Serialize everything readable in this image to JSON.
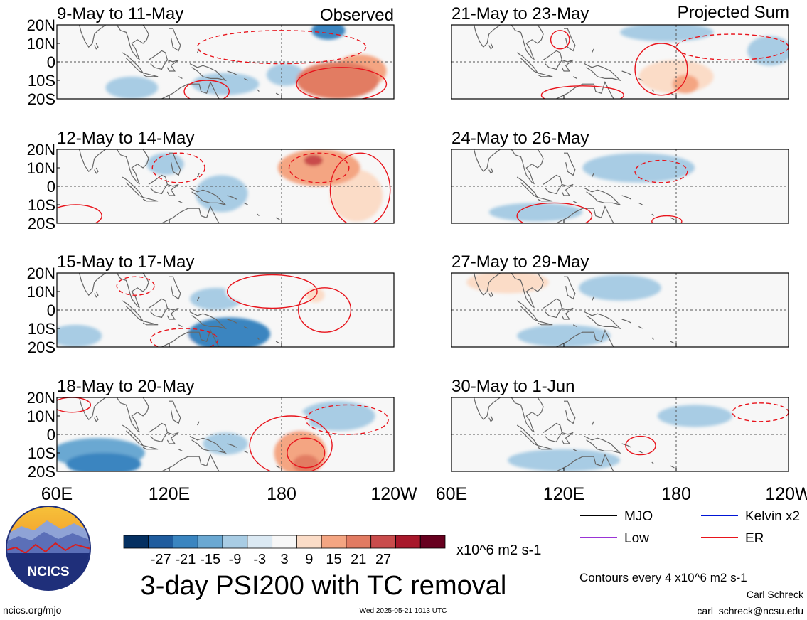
{
  "figure": {
    "title": "3-day PSI200 with TC removal",
    "left_column_label": "Observed",
    "right_column_label": "Projected Sum",
    "website": "ncics.org/mjo",
    "timestamp": "Wed 2025-05-21 1013 UTC",
    "author": "Carl Schreck",
    "email": "carl_schreck@ncsu.edu",
    "logo_text": "NCICS",
    "contour_note": "Contours every 4 x10^6 m2 s-1"
  },
  "colors": {
    "neg_strong": "#053061",
    "neg_mid": "#2f74b4",
    "neg_light": "#9dc8e2",
    "neutral": "#f7f7f7",
    "pos_light": "#f7c7ad",
    "pos_mid": "#e07b62",
    "pos_strong": "#8e0b24",
    "contour_er": "#e8141c",
    "equator_line": "#555555",
    "coast": "#666666"
  },
  "chart_data": {
    "type": "heatmap",
    "variable": "PSI200",
    "units": "x10^6 m2 s-1",
    "x_ticks": [
      "60E",
      "120E",
      "180",
      "120W",
      "60E",
      "120E",
      "180",
      "120W"
    ],
    "y_ticks": [
      "20N",
      "10N",
      "0",
      "10S",
      "20S"
    ],
    "xlim_deg_east": [
      60,
      240
    ],
    "ylim_deg": [
      -20,
      20
    ],
    "colorbar": {
      "labels": [
        "-27",
        "-21",
        "-15",
        "-9",
        "-3",
        "3",
        "9",
        "15",
        "21",
        "27"
      ],
      "bins": [
        "#053061",
        "#1f5c9e",
        "#3a85c0",
        "#6aa8d2",
        "#a8cce4",
        "#dbe9f3",
        "#f7f7f7",
        "#fbdcc7",
        "#f4a582",
        "#e27b62",
        "#c94c4c",
        "#a8182b",
        "#67001f"
      ],
      "units": "x10^6 m2 s-1"
    },
    "legend": [
      {
        "name": "MJO",
        "color": "#000000"
      },
      {
        "name": "Kelvin x2",
        "color": "#0015d6"
      },
      {
        "name": "Low",
        "color": "#9a34d6"
      },
      {
        "name": "ER",
        "color": "#e8141c"
      }
    ],
    "panels": [
      {
        "label": "9-May to 11-May",
        "column": "observed",
        "blobs": [
          {
            "lon": 210,
            "lat": -10,
            "rx": 22,
            "ry": 10,
            "v": 22
          },
          {
            "lon": 222,
            "lat": -5,
            "rx": 14,
            "ry": 9,
            "v": 18
          },
          {
            "lon": 205,
            "lat": 17,
            "rx": 9,
            "ry": 5,
            "v": -16
          },
          {
            "lon": 165,
            "lat": 16,
            "rx": 18,
            "ry": 6,
            "v": 6
          },
          {
            "lon": 75,
            "lat": 14,
            "rx": 14,
            "ry": 6,
            "v": 6
          },
          {
            "lon": 118,
            "lat": 14,
            "rx": 12,
            "ry": 6,
            "v": 7
          },
          {
            "lon": 100,
            "lat": -14,
            "rx": 14,
            "ry": 6,
            "v": -5
          },
          {
            "lon": 150,
            "lat": -12,
            "rx": 18,
            "ry": 6,
            "v": -5
          },
          {
            "lon": 182,
            "lat": -7,
            "rx": 10,
            "ry": 6,
            "v": -5
          }
        ],
        "contours": [
          {
            "lon": 212,
            "lat": -12,
            "rx": 24,
            "ry": 9,
            "dashed": false
          },
          {
            "lon": 180,
            "lat": 8,
            "rx": 45,
            "ry": 9,
            "dashed": true
          },
          {
            "lon": 140,
            "lat": -16,
            "rx": 12,
            "ry": 6,
            "dashed": false
          }
        ]
      },
      {
        "label": "12-May to 14-May",
        "column": "observed",
        "blobs": [
          {
            "lon": 200,
            "lat": 10,
            "rx": 22,
            "ry": 10,
            "v": 18
          },
          {
            "lon": 197,
            "lat": 14,
            "rx": 5,
            "ry": 3,
            "v": 30
          },
          {
            "lon": 220,
            "lat": -5,
            "rx": 14,
            "ry": 14,
            "v": 14
          },
          {
            "lon": 75,
            "lat": -10,
            "rx": 20,
            "ry": 8,
            "v": 5
          },
          {
            "lon": 125,
            "lat": 10,
            "rx": 15,
            "ry": 8,
            "v": 6
          },
          {
            "lon": 118,
            "lat": 12,
            "rx": 10,
            "ry": 6,
            "v": -6
          },
          {
            "lon": 148,
            "lat": -4,
            "rx": 14,
            "ry": 10,
            "v": -7
          },
          {
            "lon": 170,
            "lat": -10,
            "rx": 15,
            "ry": 6,
            "v": 5
          }
        ],
        "contours": [
          {
            "lon": 222,
            "lat": -2,
            "rx": 16,
            "ry": 20,
            "dashed": false
          },
          {
            "lon": 200,
            "lat": 10,
            "rx": 16,
            "ry": 8,
            "dashed": true
          },
          {
            "lon": 70,
            "lat": -16,
            "rx": 14,
            "ry": 6,
            "dashed": false
          },
          {
            "lon": 125,
            "lat": 10,
            "rx": 14,
            "ry": 8,
            "dashed": true
          }
        ]
      },
      {
        "label": "15-May to 17-May",
        "column": "observed",
        "blobs": [
          {
            "lon": 175,
            "lat": 10,
            "rx": 25,
            "ry": 8,
            "v": 7
          },
          {
            "lon": 198,
            "lat": 8,
            "rx": 5,
            "ry": 4,
            "v": 12
          },
          {
            "lon": 195,
            "lat": -3,
            "rx": 8,
            "ry": 5,
            "v": 7
          },
          {
            "lon": 152,
            "lat": -13,
            "rx": 22,
            "ry": 9,
            "v": -15
          },
          {
            "lon": 70,
            "lat": -14,
            "rx": 14,
            "ry": 6,
            "v": -7
          },
          {
            "lon": 90,
            "lat": 12,
            "rx": 22,
            "ry": 6,
            "v": 6
          },
          {
            "lon": 123,
            "lat": -16,
            "rx": 12,
            "ry": 5,
            "v": 8
          },
          {
            "lon": 145,
            "lat": 6,
            "rx": 14,
            "ry": 6,
            "v": -4
          }
        ],
        "contours": [
          {
            "lon": 175,
            "lat": 10,
            "rx": 24,
            "ry": 9,
            "dashed": false
          },
          {
            "lon": 203,
            "lat": 0,
            "rx": 14,
            "ry": 12,
            "dashed": false
          },
          {
            "lon": 102,
            "lat": 13,
            "rx": 10,
            "ry": 5,
            "dashed": true
          },
          {
            "lon": 128,
            "lat": -16,
            "rx": 18,
            "ry": 6,
            "dashed": true
          }
        ]
      },
      {
        "label": "18-May to 20-May",
        "column": "observed",
        "blobs": [
          {
            "lon": 190,
            "lat": -10,
            "rx": 14,
            "ry": 12,
            "v": 20
          },
          {
            "lon": 193,
            "lat": -16,
            "rx": 7,
            "ry": 5,
            "v": 26
          },
          {
            "lon": 175,
            "lat": 6,
            "rx": 20,
            "ry": 10,
            "v": 9
          },
          {
            "lon": 85,
            "lat": -16,
            "rx": 20,
            "ry": 6,
            "v": -20
          },
          {
            "lon": 82,
            "lat": -10,
            "rx": 25,
            "ry": 8,
            "v": -9
          },
          {
            "lon": 70,
            "lat": 16,
            "rx": 10,
            "ry": 4,
            "v": 8
          },
          {
            "lon": 150,
            "lat": -5,
            "rx": 12,
            "ry": 6,
            "v": -7
          },
          {
            "lon": 120,
            "lat": 8,
            "rx": 14,
            "ry": 6,
            "v": 5
          },
          {
            "lon": 210,
            "lat": 10,
            "rx": 20,
            "ry": 8,
            "v": -5
          }
        ],
        "contours": [
          {
            "lon": 185,
            "lat": -6,
            "rx": 22,
            "ry": 16,
            "dashed": false
          },
          {
            "lon": 193,
            "lat": -10,
            "rx": 10,
            "ry": 8,
            "dashed": false
          },
          {
            "lon": 68,
            "lat": 16,
            "rx": 10,
            "ry": 4,
            "dashed": false
          },
          {
            "lon": 215,
            "lat": 8,
            "rx": 22,
            "ry": 8,
            "dashed": true
          }
        ]
      },
      {
        "label": "21-May to 23-May",
        "column": "projected",
        "blobs": [
          {
            "lon": 180,
            "lat": -8,
            "rx": 20,
            "ry": 9,
            "v": 10
          },
          {
            "lon": 185,
            "lat": -12,
            "rx": 7,
            "ry": 5,
            "v": 18
          },
          {
            "lon": 175,
            "lat": 16,
            "rx": 25,
            "ry": 5,
            "v": -6
          },
          {
            "lon": 110,
            "lat": 15,
            "rx": 12,
            "ry": 5,
            "v": 5
          },
          {
            "lon": 85,
            "lat": 14,
            "rx": 22,
            "ry": 5,
            "v": 5
          },
          {
            "lon": 125,
            "lat": -15,
            "rx": 20,
            "ry": 5,
            "v": 4
          },
          {
            "lon": 230,
            "lat": 6,
            "rx": 12,
            "ry": 8,
            "v": -4
          }
        ],
        "contours": [
          {
            "lon": 172,
            "lat": -4,
            "rx": 14,
            "ry": 14,
            "dashed": false
          },
          {
            "lon": 210,
            "lat": 8,
            "rx": 30,
            "ry": 7,
            "dashed": true
          },
          {
            "lon": 118,
            "lat": 12,
            "rx": 5,
            "ry": 5,
            "dashed": false
          },
          {
            "lon": 130,
            "lat": -18,
            "rx": 22,
            "ry": 5,
            "dashed": false
          }
        ]
      },
      {
        "label": "24-May to 26-May",
        "column": "projected",
        "blobs": [
          {
            "lon": 160,
            "lat": 10,
            "rx": 30,
            "ry": 8,
            "v": -6
          },
          {
            "lon": 190,
            "lat": -10,
            "rx": 12,
            "ry": 7,
            "v": 8
          },
          {
            "lon": 210,
            "lat": 4,
            "rx": 25,
            "ry": 10,
            "v": 4
          },
          {
            "lon": 110,
            "lat": 15,
            "rx": 20,
            "ry": 5,
            "v": 4
          },
          {
            "lon": 105,
            "lat": -14,
            "rx": 25,
            "ry": 5,
            "v": -4
          }
        ],
        "contours": [
          {
            "lon": 172,
            "lat": 8,
            "rx": 14,
            "ry": 6,
            "dashed": true
          },
          {
            "lon": 115,
            "lat": -16,
            "rx": 20,
            "ry": 7,
            "dashed": false
          },
          {
            "lon": 175,
            "lat": -19,
            "rx": 8,
            "ry": 3,
            "dashed": false
          }
        ]
      },
      {
        "label": "27-May to 29-May",
        "column": "projected",
        "blobs": [
          {
            "lon": 90,
            "lat": 15,
            "rx": 22,
            "ry": 6,
            "v": 10
          },
          {
            "lon": 195,
            "lat": -5,
            "rx": 18,
            "ry": 12,
            "v": 8
          },
          {
            "lon": 150,
            "lat": 12,
            "rx": 22,
            "ry": 7,
            "v": -5
          },
          {
            "lon": 160,
            "lat": 12,
            "rx": 8,
            "ry": 4,
            "v": -8
          },
          {
            "lon": 120,
            "lat": -14,
            "rx": 25,
            "ry": 6,
            "v": -5
          },
          {
            "lon": 70,
            "lat": 0,
            "rx": 10,
            "ry": 5,
            "v": 4
          }
        ],
        "contours": []
      },
      {
        "label": "30-May to 1-Jun",
        "column": "projected",
        "blobs": [
          {
            "lon": 100,
            "lat": 16,
            "rx": 22,
            "ry": 5,
            "v": 9
          },
          {
            "lon": 120,
            "lat": -14,
            "rx": 30,
            "ry": 6,
            "v": -5
          },
          {
            "lon": 190,
            "lat": 10,
            "rx": 20,
            "ry": 6,
            "v": -4
          },
          {
            "lon": 160,
            "lat": -7,
            "rx": 12,
            "ry": 5,
            "v": 4
          },
          {
            "lon": 215,
            "lat": -8,
            "rx": 25,
            "ry": 6,
            "v": 4
          }
        ],
        "contours": [
          {
            "lon": 161,
            "lat": -6,
            "rx": 8,
            "ry": 5,
            "dashed": false
          },
          {
            "lon": 225,
            "lat": 12,
            "rx": 15,
            "ry": 5,
            "dashed": true
          }
        ]
      }
    ]
  }
}
